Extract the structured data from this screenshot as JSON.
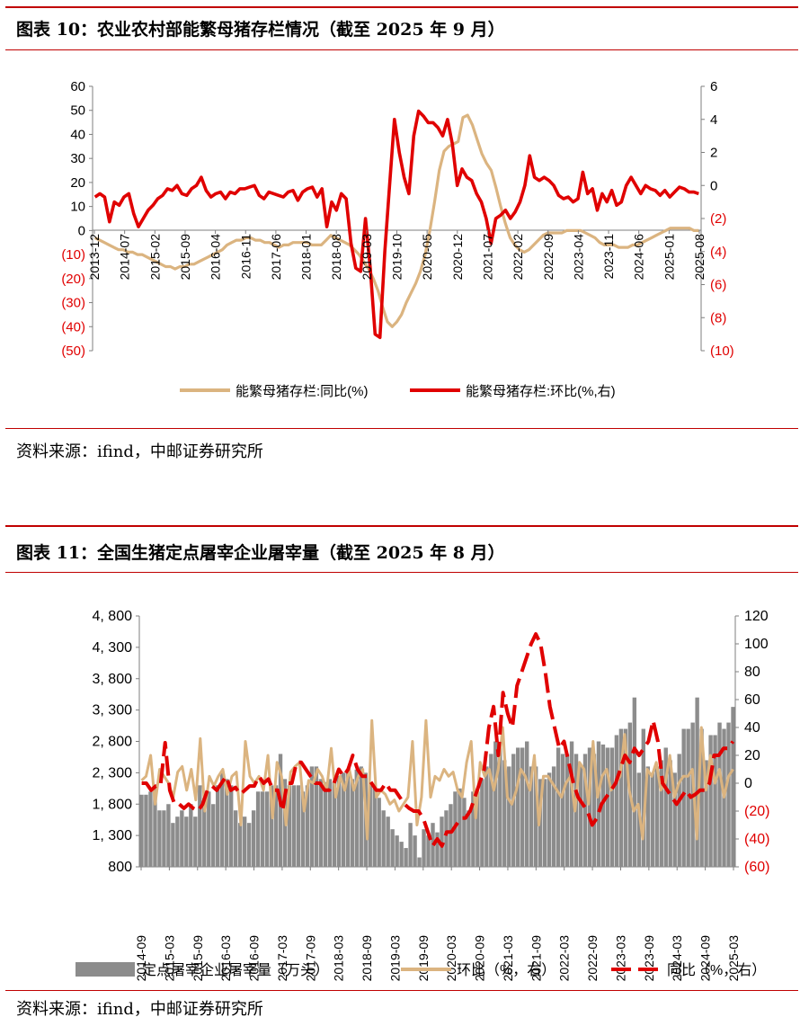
{
  "figure10": {
    "title": "图表 10：农业农村部能繁母猪存栏情况（截至 2025 年 9 月）",
    "source": "资料来源：ifind，中邮证券研究所",
    "chart_data": {
      "type": "line",
      "x_tick_labels": [
        "2013-12",
        "2014-07",
        "2015-02",
        "2015-09",
        "2016-04",
        "2016-11",
        "2017-06",
        "2018-01",
        "2018-08",
        "2019-03",
        "2019-10",
        "2020-05",
        "2020-12",
        "2021-07",
        "2022-02",
        "2022-09",
        "2023-04",
        "2023-11",
        "2024-06",
        "2025-01",
        "2025-08"
      ],
      "y_left_ticks": [
        "60",
        "50",
        "40",
        "30",
        "20",
        "10",
        "0",
        "(10)",
        "(20)",
        "(30)",
        "(40)",
        "(50)"
      ],
      "y_left_range": [
        -50,
        60
      ],
      "y_right_ticks": [
        "6",
        "4",
        "2",
        "0",
        "(2)",
        "(4)",
        "(6)",
        "(8)",
        "(10)"
      ],
      "y_right_range": [
        -10,
        6
      ],
      "legend_position": "bottom",
      "series": [
        {
          "name": "能繁母猪存栏:同比(%)",
          "axis": "left",
          "color": "#dbb480",
          "values": [
            -3,
            -4,
            -5,
            -6,
            -7,
            -8,
            -8,
            -9,
            -9,
            -10,
            -10,
            -11,
            -12,
            -13,
            -14,
            -15,
            -15,
            -16,
            -15,
            -15,
            -14,
            -14,
            -13,
            -12,
            -11,
            -10,
            -9,
            -8,
            -6,
            -5,
            -4,
            -4,
            -3,
            -3,
            -4,
            -4,
            -5,
            -5,
            -6,
            -7,
            -6,
            -6,
            -5,
            -5,
            -5,
            -5,
            -6,
            -6,
            -6,
            -4,
            -2,
            -3,
            -4,
            -5,
            -6,
            -8,
            -10,
            -13,
            -16,
            -20,
            -25,
            -32,
            -38,
            -40,
            -38,
            -35,
            -30,
            -26,
            -22,
            -17,
            -10,
            0,
            12,
            25,
            33,
            35,
            36,
            37,
            47,
            48,
            44,
            38,
            32,
            28,
            25,
            18,
            10,
            3,
            -3,
            -6,
            -8,
            -9,
            -8,
            -6,
            -4,
            -2,
            -1,
            -1,
            -1,
            -1,
            0,
            0,
            0,
            0,
            -1,
            -2,
            -3,
            -5,
            -6,
            -6,
            -6,
            -7,
            -7,
            -7,
            -6,
            -6,
            -5,
            -4,
            -3,
            -2,
            -1,
            0,
            1,
            1,
            1,
            1,
            1,
            0,
            0
          ]
        },
        {
          "name": "能繁母猪存栏:环比(%,右)",
          "axis": "right",
          "color": "#e00000",
          "values": [
            -0.7,
            -0.5,
            -0.7,
            -2.2,
            -1.0,
            -1.2,
            -0.7,
            -0.5,
            -1.7,
            -2.5,
            -2.0,
            -1.5,
            -1.2,
            -0.8,
            -0.6,
            -0.2,
            -0.3,
            0.0,
            -0.5,
            -0.6,
            -0.2,
            0.0,
            0.5,
            -0.3,
            -0.7,
            -0.5,
            -0.4,
            -0.8,
            -0.4,
            -0.5,
            -0.2,
            -0.2,
            -0.1,
            0.0,
            -0.6,
            -0.8,
            -0.4,
            -0.5,
            -0.6,
            -0.7,
            -0.4,
            -0.3,
            -0.9,
            -0.4,
            -0.2,
            -0.1,
            -0.7,
            -0.2,
            -2.5,
            -1.0,
            -1.5,
            -0.5,
            -0.8,
            -3.5,
            -5.0,
            -5.2,
            -2.0,
            -5.0,
            -9.0,
            -9.2,
            -4.0,
            0.0,
            4.0,
            2.0,
            0.5,
            -0.5,
            3.0,
            4.5,
            4.2,
            3.8,
            3.8,
            3.5,
            3.0,
            4.0,
            2.5,
            0.0,
            1.0,
            0.5,
            0.3,
            -0.5,
            -1.0,
            -2.0,
            -3.5,
            -2.0,
            -1.8,
            -1.5,
            -2.0,
            -1.6,
            -1.0,
            0.0,
            1.8,
            0.5,
            0.3,
            0.5,
            0.3,
            0.0,
            -0.6,
            -0.8,
            -0.7,
            -1.0,
            -0.8,
            0.8,
            -0.5,
            -0.2,
            -1.5,
            -0.5,
            -1.0,
            -0.3,
            -1.2,
            -1.0,
            0.0,
            0.5,
            0.0,
            -0.5,
            0.0,
            -0.2,
            -0.3,
            -0.6,
            -0.3,
            -0.7,
            -0.4,
            -0.1,
            -0.2,
            -0.4,
            -0.4,
            -0.5
          ]
        }
      ]
    }
  },
  "figure11": {
    "title": "图表 11：全国生猪定点屠宰企业屠宰量（截至 2025 年 8 月）",
    "source": "资料来源：ifind，中邮证券研究所",
    "chart_data": {
      "type": "bar",
      "x_tick_labels": [
        "2014-09",
        "2015-03",
        "2015-09",
        "2016-03",
        "2016-09",
        "2017-03",
        "2017-09",
        "2018-03",
        "2018-09",
        "2019-03",
        "2019-09",
        "2020-03",
        "2020-09",
        "2021-03",
        "2021-09",
        "2022-03",
        "2022-09",
        "2023-03",
        "2023-09",
        "2024-03",
        "2024-09",
        "2025-03"
      ],
      "y_left_ticks": [
        "4, 800",
        "4, 300",
        "3, 800",
        "3, 300",
        "2, 800",
        "2, 300",
        "1, 800",
        "1, 300",
        "800"
      ],
      "y_left_range": [
        800,
        4800
      ],
      "y_right_ticks": [
        "120",
        "100",
        "80",
        "60",
        "40",
        "20",
        "0",
        "(20)",
        "(40)",
        "(60)"
      ],
      "y_right_range": [
        -60,
        120
      ],
      "legend_position": "bottom",
      "series": [
        {
          "name": "定点屠宰企业屠宰量（万头）",
          "type": "bar",
          "axis": "left",
          "color": "#8c8c8c",
          "values": [
            1950,
            1950,
            2000,
            2100,
            1700,
            1700,
            1800,
            1500,
            1600,
            1700,
            1600,
            1800,
            1600,
            2100,
            1900,
            2000,
            1800,
            2100,
            2300,
            2200,
            2100,
            1700,
            1500,
            1600,
            1500,
            1700,
            2000,
            2000,
            2000,
            2100,
            2100,
            2600,
            2200,
            2100,
            2100,
            2100,
            2000,
            2100,
            2400,
            2400,
            2200,
            2150,
            2200,
            2150,
            2250,
            2300,
            2300,
            2200,
            2350,
            2400,
            2300,
            2100,
            2100,
            1900,
            1700,
            1600,
            1400,
            1300,
            1200,
            1100,
            1500,
            1300,
            950,
            1400,
            1300,
            1500,
            1350,
            1600,
            1700,
            1800,
            2000,
            2050,
            1900,
            1700,
            2000,
            2000,
            2200,
            2400,
            2600,
            2800,
            2700,
            2500,
            2400,
            2600,
            2700,
            2700,
            2800,
            2400,
            2400,
            2200,
            2200,
            2300,
            2400,
            2700,
            2600,
            2600,
            2800,
            2600,
            2400,
            2600,
            2700,
            2600,
            2800,
            2750,
            2700,
            2700,
            2900,
            3000,
            3000,
            3100,
            3500,
            2300,
            3000,
            2400,
            2300,
            2400,
            2500,
            2700,
            2500,
            2300,
            2600,
            3000,
            3000,
            3100,
            3500,
            3000,
            2500,
            2900,
            2900,
            3100,
            3000,
            3100,
            3350
          ]
        },
        {
          "name": "环比（%，右）",
          "type": "line",
          "axis": "right",
          "color": "#dbb480",
          "values": [
            2,
            5,
            20,
            -15,
            10,
            5,
            0,
            -10,
            8,
            12,
            -5,
            10,
            -12,
            32,
            -20,
            5,
            -2,
            5,
            10,
            -8,
            5,
            8,
            -30,
            30,
            5,
            0,
            5,
            -5,
            20,
            -25,
            15,
            5,
            -30,
            8,
            12,
            15,
            -20,
            2,
            0,
            10,
            5,
            -5,
            25,
            -10,
            5,
            -5,
            10,
            -5,
            5,
            10,
            -40,
            45,
            -10,
            -5,
            -8,
            -15,
            -12,
            -20,
            -15,
            -10,
            30,
            -30,
            -10,
            45,
            -10,
            5,
            2,
            10,
            5,
            8,
            -5,
            -10,
            15,
            30,
            -25,
            15,
            5,
            10,
            -5,
            10,
            40,
            -10,
            -15,
            -5,
            10,
            5,
            -5,
            20,
            -30,
            5,
            5,
            0,
            -5,
            -10,
            0,
            5,
            -20,
            15,
            10,
            -15,
            30,
            -10,
            5,
            10,
            -5,
            0,
            5,
            35,
            -5,
            -20,
            -15,
            -40,
            10,
            5,
            15,
            -5,
            0,
            20,
            -10,
            0,
            5,
            5,
            10,
            -40,
            40,
            -5,
            20,
            0,
            10,
            -10,
            5,
            10
          ]
        },
        {
          "name": "同比（%，右）",
          "type": "line",
          "axis": "right",
          "color": "#e00000",
          "values": [
            0,
            0,
            -5,
            -2,
            -2,
            29,
            -5,
            -15,
            -15,
            -18,
            -15,
            -18,
            -20,
            -15,
            -5,
            -2,
            -5,
            0,
            5,
            -5,
            -3,
            -8,
            -5,
            -2,
            -2,
            5,
            0,
            3,
            -5,
            -5,
            -20,
            0,
            0,
            15,
            15,
            10,
            5,
            0,
            0,
            -5,
            -5,
            0,
            10,
            5,
            10,
            20,
            10,
            5,
            5,
            0,
            -5,
            -5,
            0,
            -5,
            -5,
            -10,
            -15,
            -18,
            -20,
            -20,
            -25,
            -35,
            -45,
            -40,
            -45,
            -35,
            -35,
            -30,
            -25,
            -25,
            -20,
            -10,
            0,
            10,
            40,
            55,
            20,
            65,
            50,
            40,
            70,
            80,
            90,
            100,
            107,
            100,
            80,
            55,
            40,
            25,
            30,
            15,
            0,
            -10,
            -15,
            -20,
            -30,
            -25,
            -15,
            -10,
            -5,
            0,
            10,
            20,
            15,
            25,
            20,
            25,
            30,
            45,
            30,
            0,
            -5,
            -10,
            -15,
            -10,
            -5,
            -10,
            -8,
            -5,
            -5,
            0,
            20,
            20,
            25,
            25,
            30
          ]
        }
      ]
    }
  }
}
